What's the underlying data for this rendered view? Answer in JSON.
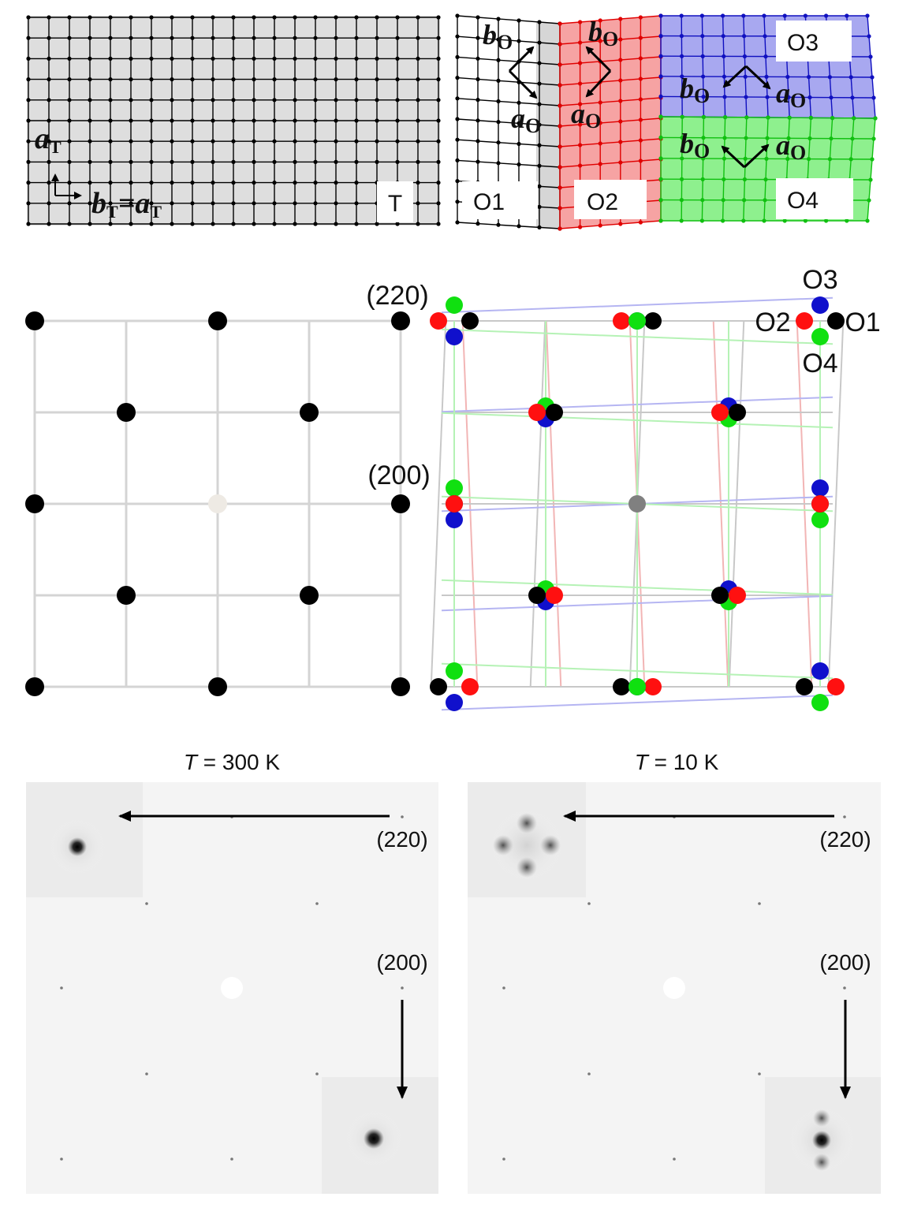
{
  "top_panel": {
    "tetragonal": {
      "box_label": "T",
      "axis_a": "a",
      "axis_a_sub": "T",
      "axis_b": "b",
      "axis_b_sub": "T",
      "axis_eq": "=a",
      "axis_eq_sub": "T"
    },
    "domains": [
      {
        "label": "O1",
        "color": "#d9d9d9"
      },
      {
        "label": "O2",
        "color": "#f6a3a3"
      },
      {
        "label": "O3",
        "color": "#a8a8f0"
      },
      {
        "label": "O4",
        "color": "#8ef08e"
      }
    ],
    "axis_letters": {
      "b": "b",
      "a": "a",
      "sub": "O"
    }
  },
  "middle_panel": {
    "left_lattice": {
      "point_color": "#000000",
      "center_color": "#eeeae4"
    },
    "right_labels": {
      "reflection_220": "(220)",
      "reflection_200": "(200)",
      "domain_O1": "O1",
      "domain_O2": "O2",
      "domain_O3": "O3",
      "domain_O4": "O4"
    },
    "colors": {
      "O1": "#000000",
      "O2": "#ff1010",
      "O3": "#1010cc",
      "O4": "#10e010",
      "center": "#808080"
    }
  },
  "bottom_panel": {
    "left": {
      "temp_T": "T",
      "temp_value": " = 300 K",
      "label_220": "(220)",
      "label_200": "(200)"
    },
    "right": {
      "temp_T": "T",
      "temp_value": " = 10 K",
      "label_220": "(220)",
      "label_200": "(200)"
    }
  }
}
